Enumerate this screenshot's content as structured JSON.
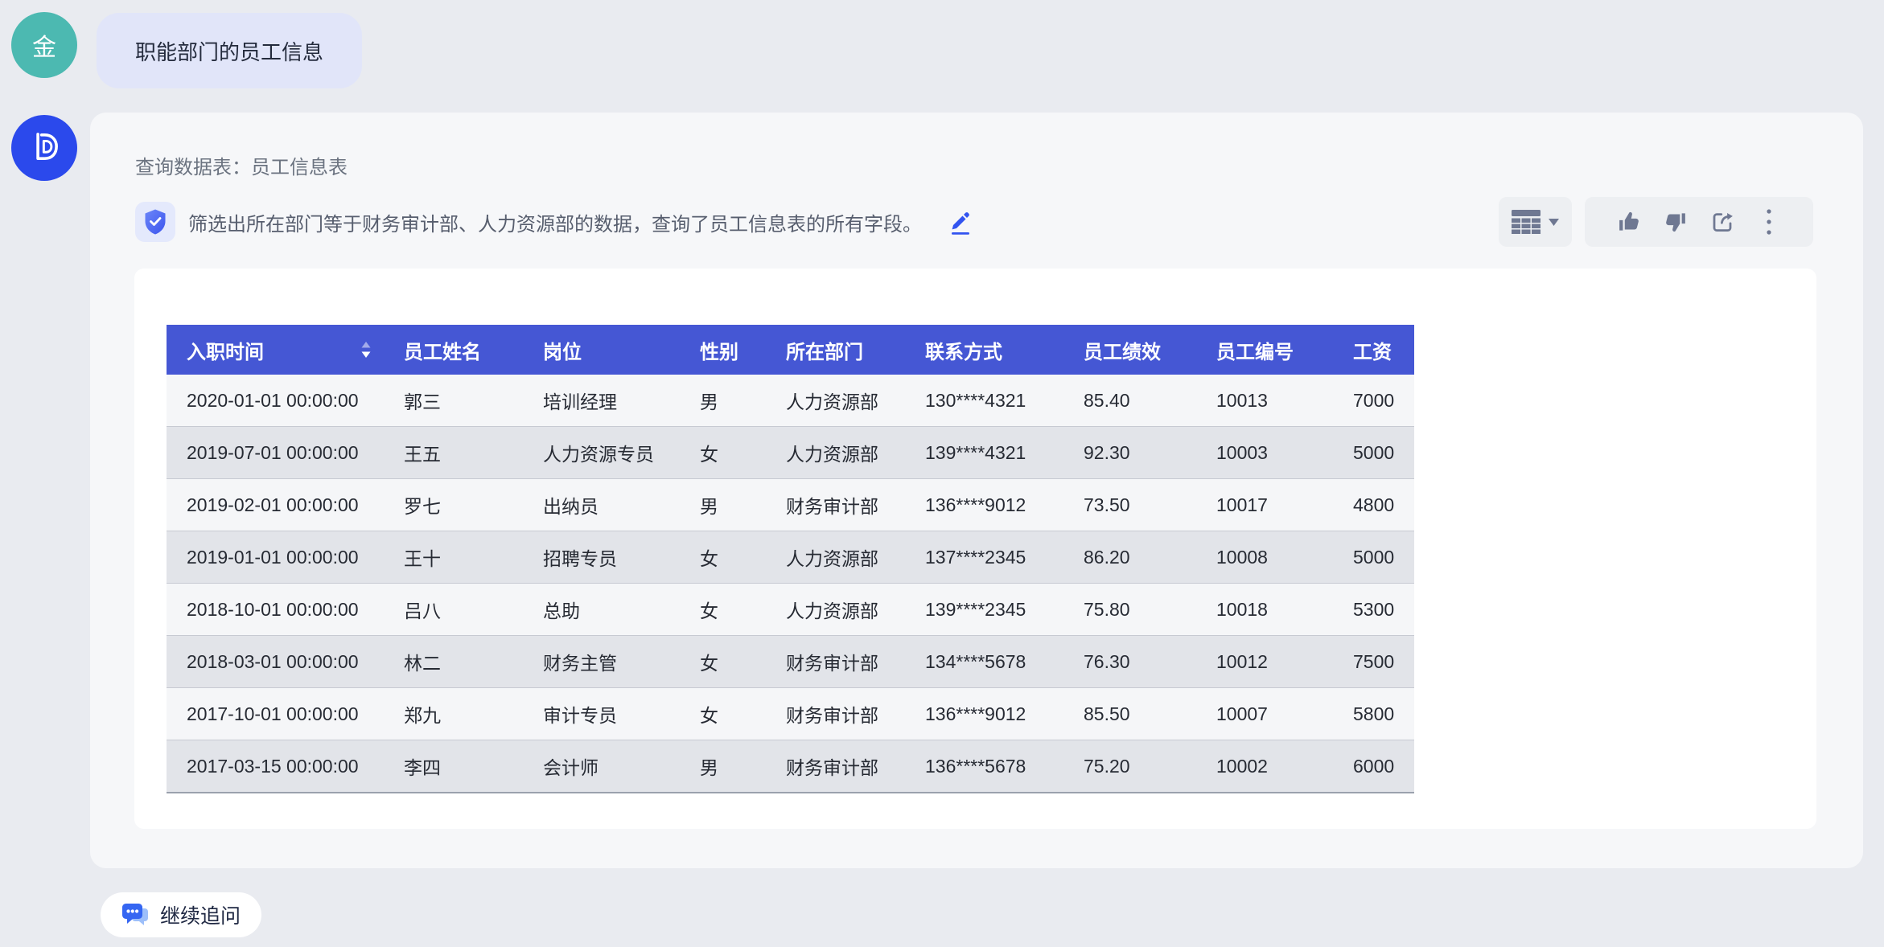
{
  "colors": {
    "page_bg": "#e9ebf0",
    "card_bg": "#f6f7f9",
    "panel_bg": "#ffffff",
    "table_header_blue": "#4557d4",
    "row_light": "#f5f6f8",
    "row_dark": "#e2e4e9",
    "accent_blue": "#3254f0",
    "user_avatar_teal": "#4cb9b1",
    "bot_avatar_blue": "#2b49ec",
    "user_bubble_lavender": "#e1e5f9",
    "icon_gray": "#6f7892"
  },
  "user_message": {
    "avatar_text": "金",
    "text": "职能部门的员工信息"
  },
  "assistant": {
    "query_table_label": "查询数据表：员工信息表",
    "filter_description": "筛选出所在部门等于财务审计部、人力资源部的数据，查询了员工信息表的所有字段。",
    "toolbar": {
      "view_switcher_icon": "table-view-icon",
      "action_icons": [
        "thumbs-up-icon",
        "thumbs-down-icon",
        "share-icon",
        "more-vertical-icon"
      ]
    },
    "table": {
      "headers": [
        "入职时间",
        "员工姓名",
        "岗位",
        "性别",
        "所在部门",
        "联系方式",
        "员工绩效",
        "员工编号",
        "工资"
      ],
      "sorted_column": "入职时间",
      "rows": [
        [
          "2020-01-01 00:00:00",
          "郭三",
          "培训经理",
          "男",
          "人力资源部",
          "130****4321",
          "85.40",
          "10013",
          "7000"
        ],
        [
          "2019-07-01 00:00:00",
          "王五",
          "人力资源专员",
          "女",
          "人力资源部",
          "139****4321",
          "92.30",
          "10003",
          "5000"
        ],
        [
          "2019-02-01 00:00:00",
          "罗七",
          "出纳员",
          "男",
          "财务审计部",
          "136****9012",
          "73.50",
          "10017",
          "4800"
        ],
        [
          "2019-01-01 00:00:00",
          "王十",
          "招聘专员",
          "女",
          "人力资源部",
          "137****2345",
          "86.20",
          "10008",
          "5000"
        ],
        [
          "2018-10-01 00:00:00",
          "吕八",
          "总助",
          "女",
          "人力资源部",
          "139****2345",
          "75.80",
          "10018",
          "5300"
        ],
        [
          "2018-03-01 00:00:00",
          "林二",
          "财务主管",
          "女",
          "财务审计部",
          "134****5678",
          "76.30",
          "10012",
          "7500"
        ],
        [
          "2017-10-01 00:00:00",
          "郑九",
          "审计专员",
          "女",
          "财务审计部",
          "136****9012",
          "85.50",
          "10007",
          "5800"
        ],
        [
          "2017-03-15 00:00:00",
          "李四",
          "会计师",
          "男",
          "财务审计部",
          "136****5678",
          "75.20",
          "10002",
          "6000"
        ]
      ]
    },
    "follow_up_label": "继续追问"
  }
}
